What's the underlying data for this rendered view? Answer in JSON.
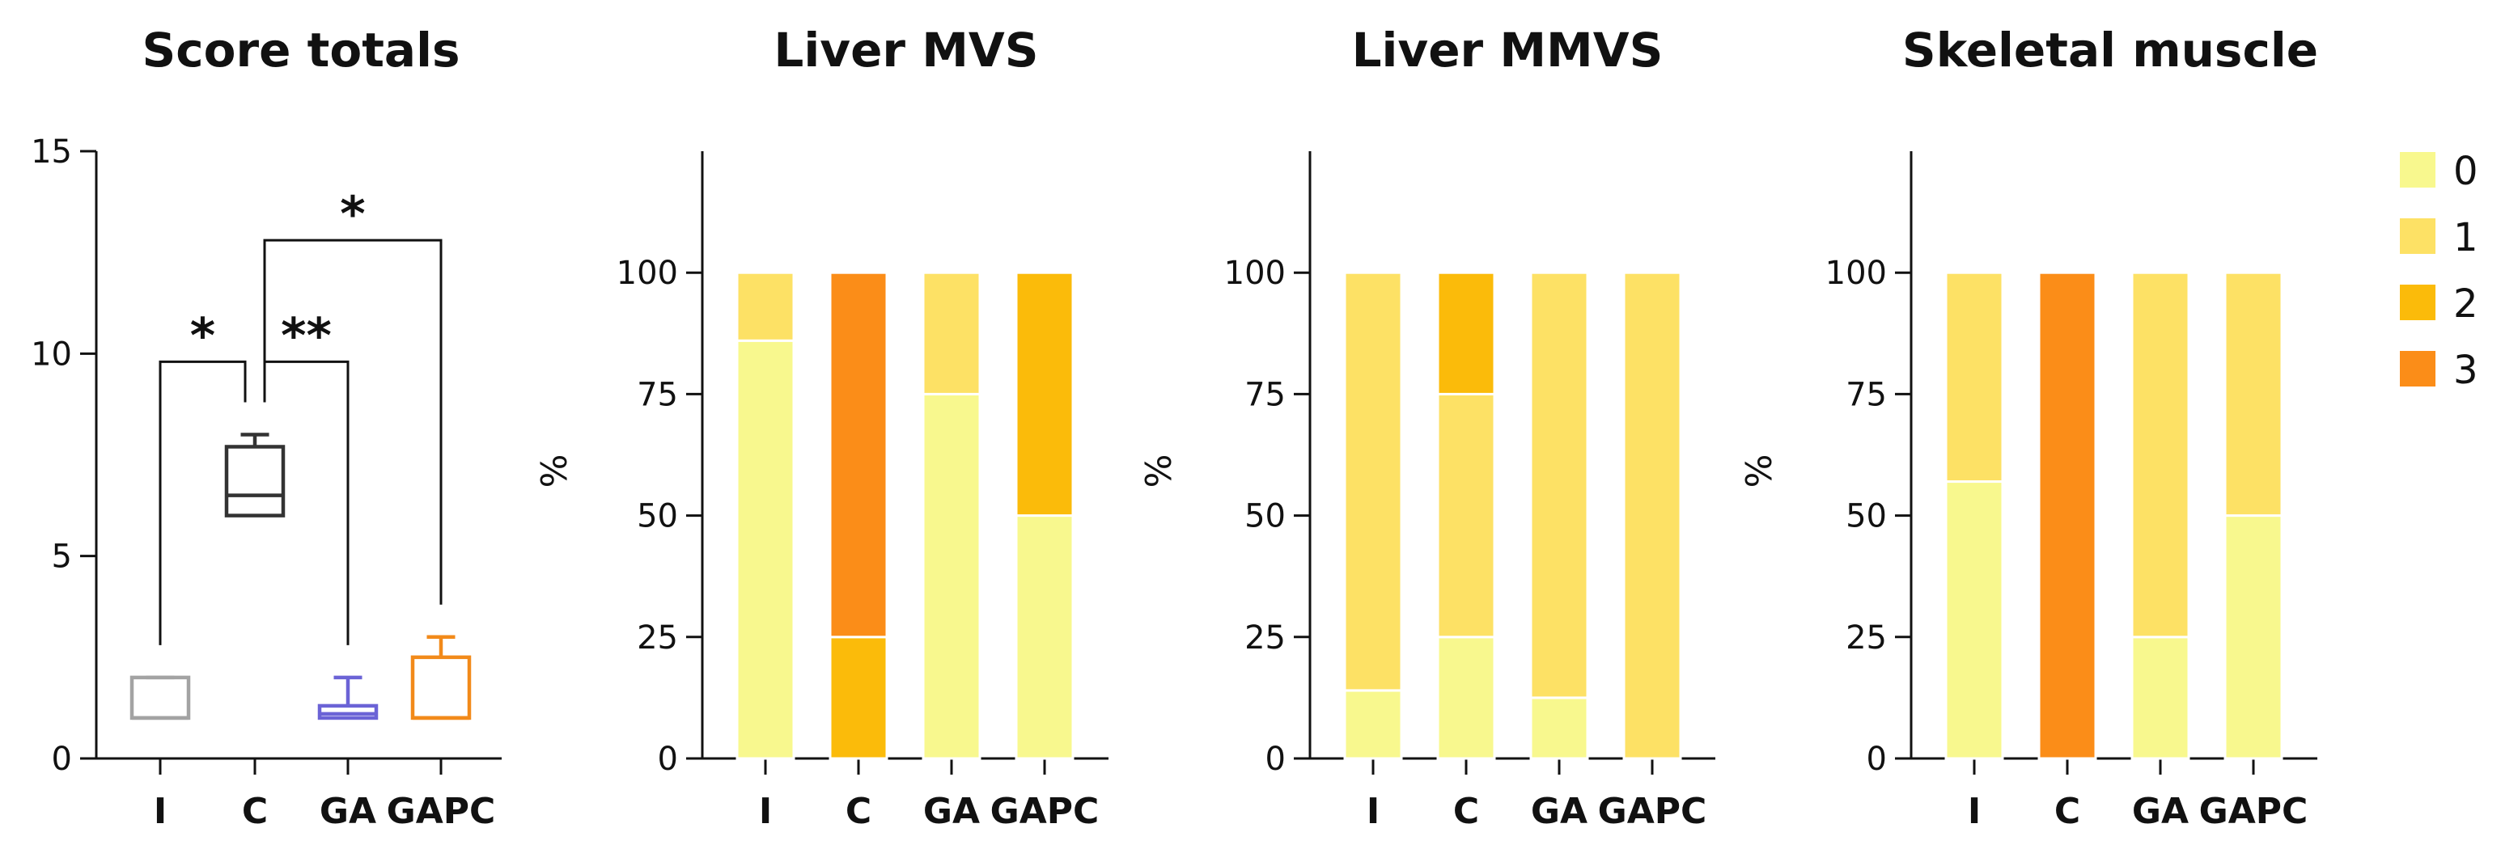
{
  "chart_data": [
    {
      "type": "box",
      "title": "Score totals",
      "xlabel": "",
      "ylabel": "",
      "ylim": [
        0,
        15
      ],
      "yticks": [
        0,
        5,
        10,
        15
      ],
      "categories": [
        "I",
        "C",
        "GA",
        "GAPC"
      ],
      "boxes": [
        {
          "group": "I",
          "min": 1,
          "q1": 1,
          "median": 1,
          "q3": 2,
          "max": 2,
          "color": "#a3a3a3"
        },
        {
          "group": "C",
          "min": 6,
          "q1": 6,
          "median": 6.5,
          "q3": 7.7,
          "max": 8,
          "color": "#333333"
        },
        {
          "group": "GA",
          "min": 1,
          "q1": 1,
          "median": 1.1,
          "q3": 1.3,
          "max": 2,
          "color": "#6b63d6"
        },
        {
          "group": "GAPC",
          "min": 1,
          "q1": 1,
          "median": 1,
          "q3": 2.5,
          "max": 3,
          "color": "#f28a1a"
        }
      ],
      "significance": [
        {
          "from": "I",
          "to": "C",
          "label": "*",
          "y": 9.8
        },
        {
          "from": "C",
          "to": "GA",
          "label": "**",
          "y": 9.8
        },
        {
          "from": "C",
          "to": "GAPC",
          "label": "*",
          "y": 12.8
        }
      ]
    },
    {
      "type": "stacked-bar",
      "title": "Liver MVS",
      "ylabel": "%",
      "ylim": [
        0,
        125
      ],
      "yticks": [
        0,
        25,
        50,
        75,
        100
      ],
      "categories": [
        "I",
        "C",
        "GA",
        "GAPC"
      ],
      "series": [
        {
          "name": "0",
          "values": [
            86,
            0,
            75,
            50
          ]
        },
        {
          "name": "1",
          "values": [
            14,
            0,
            25,
            0
          ]
        },
        {
          "name": "2",
          "values": [
            0,
            25,
            0,
            50
          ]
        },
        {
          "name": "3",
          "values": [
            0,
            75,
            0,
            0
          ]
        }
      ]
    },
    {
      "type": "stacked-bar",
      "title": "Liver MMVS",
      "ylabel": "%",
      "ylim": [
        0,
        125
      ],
      "yticks": [
        0,
        25,
        50,
        75,
        100
      ],
      "categories": [
        "I",
        "C",
        "GA",
        "GAPC"
      ],
      "series": [
        {
          "name": "0",
          "values": [
            14,
            25,
            12.5,
            0
          ]
        },
        {
          "name": "1",
          "values": [
            86,
            50,
            87.5,
            100
          ]
        },
        {
          "name": "2",
          "values": [
            0,
            25,
            0,
            0
          ]
        },
        {
          "name": "3",
          "values": [
            0,
            0,
            0,
            0
          ]
        }
      ]
    },
    {
      "type": "stacked-bar",
      "title": "Skeletal muscle",
      "ylabel": "%",
      "ylim": [
        0,
        125
      ],
      "yticks": [
        0,
        25,
        50,
        75,
        100
      ],
      "categories": [
        "I",
        "C",
        "GA",
        "GAPC"
      ],
      "series": [
        {
          "name": "0",
          "values": [
            57,
            0,
            25,
            50
          ]
        },
        {
          "name": "1",
          "values": [
            43,
            0,
            75,
            50
          ]
        },
        {
          "name": "2",
          "values": [
            0,
            0,
            0,
            0
          ]
        },
        {
          "name": "3",
          "values": [
            0,
            100,
            0,
            0
          ]
        }
      ]
    }
  ],
  "legend": {
    "placement": "top-right",
    "items": [
      {
        "label": "0",
        "color": "#f8f88e"
      },
      {
        "label": "1",
        "color": "#fde165"
      },
      {
        "label": "2",
        "color": "#fbbb0a"
      },
      {
        "label": "3",
        "color": "#fb8d18"
      }
    ]
  }
}
